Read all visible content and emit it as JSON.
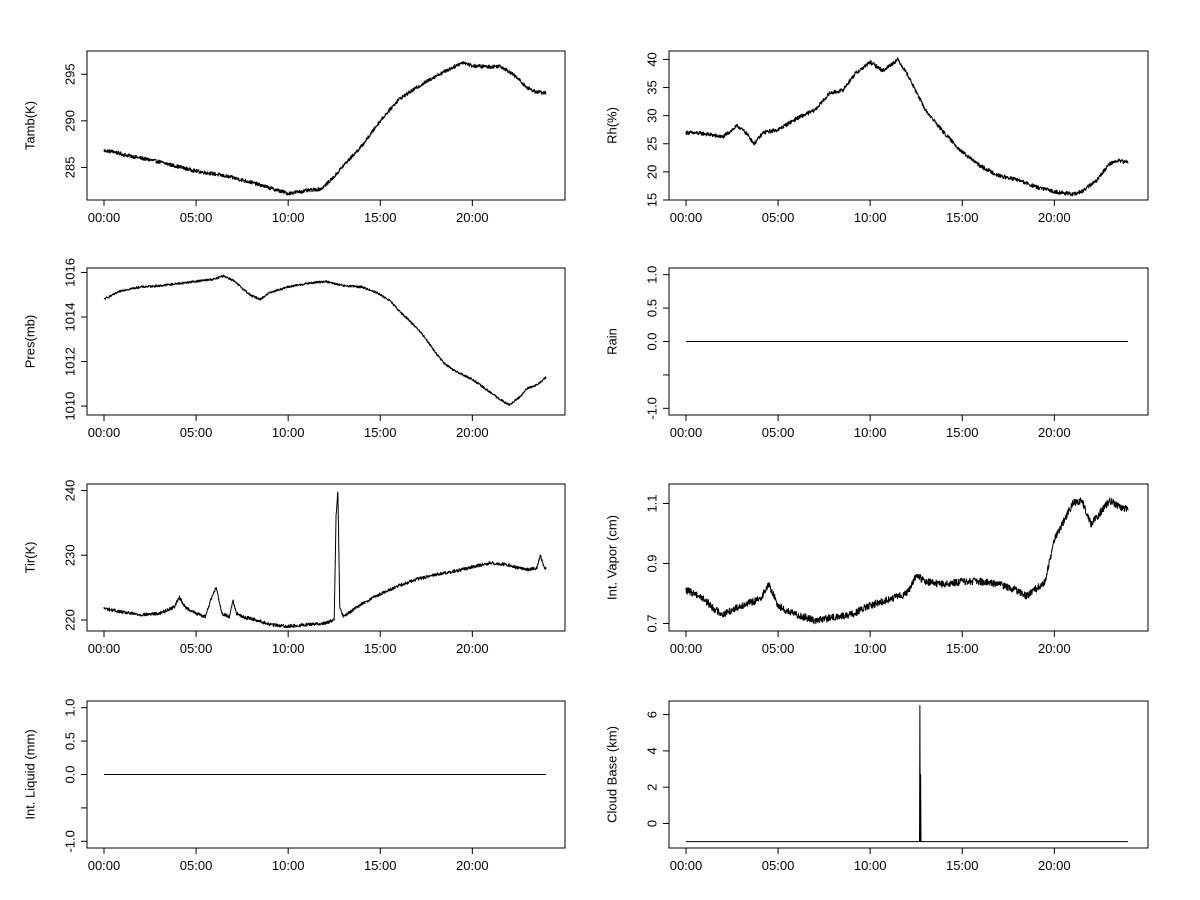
{
  "chart_data": [
    {
      "type": "line",
      "ylabel": "Tamb(K)",
      "xlabel": "",
      "xlim": [
        0,
        24
      ],
      "ylim": [
        281.5,
        297.5
      ],
      "x_ticks": [
        0,
        5,
        10,
        15,
        20
      ],
      "x_tick_labels": [
        "00:00",
        "05:00",
        "10:00",
        "15:00",
        "20:00"
      ],
      "y_ticks": [
        285,
        290,
        295
      ],
      "y_tick_labels": [
        "285",
        "290",
        "295"
      ],
      "noise": 0.2,
      "series": [
        {
          "x": [
            0,
            0.5,
            1,
            2,
            3,
            4,
            5,
            6,
            7,
            8,
            9,
            10,
            11,
            11.8,
            12.5,
            13,
            14,
            15,
            16,
            17,
            18,
            19,
            19.5,
            20,
            21,
            21.5,
            22,
            22.5,
            23,
            23.5,
            24
          ],
          "y": [
            286.8,
            286.7,
            286.4,
            286.0,
            285.6,
            285.1,
            284.6,
            284.3,
            283.9,
            283.4,
            282.8,
            282.2,
            282.5,
            282.7,
            284.0,
            285.2,
            287.3,
            290.0,
            292.3,
            293.6,
            294.8,
            295.8,
            296.3,
            295.9,
            295.8,
            295.9,
            295.3,
            294.5,
            293.5,
            293.1,
            293.0
          ]
        }
      ]
    },
    {
      "type": "line",
      "ylabel": "Rh(%)",
      "xlabel": "",
      "xlim": [
        0,
        24
      ],
      "ylim": [
        15,
        41.5
      ],
      "x_ticks": [
        0,
        5,
        10,
        15,
        20
      ],
      "x_tick_labels": [
        "00:00",
        "05:00",
        "10:00",
        "15:00",
        "20:00"
      ],
      "y_ticks": [
        15,
        20,
        25,
        30,
        35,
        40
      ],
      "y_tick_labels": [
        "15",
        "20",
        "25",
        "30",
        "35",
        "40"
      ],
      "noise": 0.35,
      "series": [
        {
          "x": [
            0,
            1,
            2,
            2.8,
            3.3,
            3.7,
            4.2,
            5,
            6,
            7,
            7.8,
            8.5,
            9.2,
            10,
            10.7,
            11.5,
            12,
            13,
            14,
            15,
            16,
            17,
            18,
            19,
            20,
            21,
            21.5,
            22.3,
            23,
            23.5,
            24
          ],
          "y": [
            27,
            26.8,
            26.2,
            28.2,
            26.8,
            25.0,
            27.0,
            27.5,
            29.5,
            31.0,
            34.0,
            34.5,
            37.5,
            39.5,
            38.0,
            40.0,
            37.5,
            31.0,
            27.0,
            23.5,
            21.0,
            19.3,
            18.6,
            17.3,
            16.5,
            16.0,
            16.5,
            18.5,
            21.5,
            22.0,
            21.7
          ]
        }
      ]
    },
    {
      "type": "line",
      "ylabel": "Pres(mb)",
      "xlabel": "",
      "xlim": [
        0,
        24
      ],
      "ylim": [
        1009.6,
        1016.2
      ],
      "x_ticks": [
        0,
        5,
        10,
        15,
        20
      ],
      "x_tick_labels": [
        "00:00",
        "05:00",
        "10:00",
        "15:00",
        "20:00"
      ],
      "y_ticks": [
        1010,
        1012,
        1014,
        1016
      ],
      "y_tick_labels": [
        "1010",
        "1012",
        "1014",
        "1016"
      ],
      "noise": 0.05,
      "series": [
        {
          "x": [
            0,
            0.5,
            1,
            2,
            3,
            4,
            5,
            6,
            6.5,
            7,
            7.5,
            8,
            8.5,
            9,
            10,
            11,
            12,
            13,
            14,
            14.8,
            15.5,
            16,
            17,
            17.5,
            18,
            18.5,
            19,
            20,
            21,
            21.5,
            22,
            22.5,
            23,
            23.5,
            24
          ],
          "y": [
            1014.8,
            1015.0,
            1015.2,
            1015.35,
            1015.4,
            1015.5,
            1015.6,
            1015.7,
            1015.85,
            1015.65,
            1015.3,
            1014.95,
            1014.8,
            1015.1,
            1015.35,
            1015.5,
            1015.6,
            1015.4,
            1015.35,
            1015.1,
            1014.75,
            1014.3,
            1013.5,
            1013.0,
            1012.4,
            1011.9,
            1011.6,
            1011.2,
            1010.6,
            1010.3,
            1010.05,
            1010.35,
            1010.8,
            1010.95,
            1011.3
          ]
        }
      ]
    },
    {
      "type": "line",
      "ylabel": "Rain",
      "xlabel": "",
      "xlim": [
        0,
        24
      ],
      "ylim": [
        -1.1,
        1.1
      ],
      "x_ticks": [
        0,
        5,
        10,
        15,
        20
      ],
      "x_tick_labels": [
        "00:00",
        "05:00",
        "10:00",
        "15:00",
        "20:00"
      ],
      "y_ticks": [
        -1.0,
        -0.5,
        0.0,
        0.5,
        1.0
      ],
      "y_tick_labels": [
        "-1.0",
        "",
        "0.0",
        "0.5",
        "1.0"
      ],
      "noise": 0,
      "series": [
        {
          "x": [
            0,
            24
          ],
          "y": [
            0,
            0
          ]
        }
      ]
    },
    {
      "type": "line",
      "ylabel": "Tir(K)",
      "xlabel": "",
      "xlim": [
        0,
        24
      ],
      "ylim": [
        218.3,
        241
      ],
      "x_ticks": [
        0,
        5,
        10,
        15,
        20
      ],
      "x_tick_labels": [
        "00:00",
        "05:00",
        "10:00",
        "15:00",
        "20:00"
      ],
      "y_ticks": [
        220,
        230,
        240
      ],
      "y_tick_labels": [
        "220",
        "230",
        "240"
      ],
      "noise": 0.25,
      "series": [
        {
          "x": [
            0,
            1,
            2,
            3,
            3.8,
            4.1,
            4.4,
            5,
            5.5,
            5.9,
            6.1,
            6.4,
            6.8,
            7.0,
            7.2,
            7.5,
            8,
            8.5,
            9,
            10,
            11,
            12,
            12.5,
            12.6,
            12.7,
            12.8,
            13,
            14,
            15,
            16,
            17,
            18,
            19,
            20,
            21,
            22,
            22.5,
            23,
            23.5,
            23.7,
            23.9,
            24
          ],
          "y": [
            221.8,
            221.2,
            220.8,
            221.0,
            222.0,
            223.5,
            222.0,
            221.0,
            220.5,
            224.0,
            225.0,
            221.0,
            220.5,
            223.0,
            221.0,
            220.5,
            220.2,
            219.8,
            219.3,
            219.0,
            219.3,
            219.5,
            220.0,
            236.0,
            240.0,
            222.0,
            220.5,
            222.5,
            224.0,
            225.3,
            226.3,
            227.0,
            227.5,
            228.2,
            228.8,
            228.5,
            228.0,
            227.8,
            228.0,
            230.0,
            228.0,
            228.0
          ]
        }
      ]
    },
    {
      "type": "line",
      "ylabel": "Int. Vapor (cm)",
      "xlabel": "",
      "xlim": [
        0,
        24
      ],
      "ylim": [
        0.675,
        1.165
      ],
      "x_ticks": [
        0,
        5,
        10,
        15,
        20
      ],
      "x_tick_labels": [
        "00:00",
        "05:00",
        "10:00",
        "15:00",
        "20:00"
      ],
      "y_ticks": [
        0.7,
        0.9,
        1.1
      ],
      "y_tick_labels": [
        "0.7",
        "0.9",
        "1.1"
      ],
      "noise": 0.012,
      "series": [
        {
          "x": [
            0,
            0.5,
            1,
            1.5,
            2,
            3,
            4,
            4.5,
            5,
            5.5,
            6,
            7,
            8,
            9,
            10,
            11,
            12,
            12.5,
            13,
            14,
            15,
            16,
            17,
            18,
            18.5,
            19.5,
            20,
            21,
            21.5,
            22,
            22.5,
            23,
            23.5,
            24
          ],
          "y": [
            0.81,
            0.8,
            0.78,
            0.75,
            0.73,
            0.76,
            0.78,
            0.83,
            0.76,
            0.74,
            0.73,
            0.71,
            0.72,
            0.73,
            0.76,
            0.78,
            0.8,
            0.86,
            0.84,
            0.83,
            0.84,
            0.84,
            0.83,
            0.81,
            0.79,
            0.84,
            0.98,
            1.1,
            1.11,
            1.03,
            1.07,
            1.11,
            1.09,
            1.08
          ]
        }
      ]
    },
    {
      "type": "line",
      "ylabel": "Int. Liquid (mm)",
      "xlabel": "",
      "xlim": [
        0,
        24
      ],
      "ylim": [
        -1.1,
        1.1
      ],
      "x_ticks": [
        0,
        5,
        10,
        15,
        20
      ],
      "x_tick_labels": [
        "00:00",
        "05:00",
        "10:00",
        "15:00",
        "20:00"
      ],
      "y_ticks": [
        -1.0,
        -0.5,
        0.0,
        0.5,
        1.0
      ],
      "y_tick_labels": [
        "-1.0",
        "",
        "0.0",
        "0.5",
        "1.0"
      ],
      "noise": 0,
      "series": [
        {
          "x": [
            0,
            24
          ],
          "y": [
            0,
            0
          ]
        }
      ]
    },
    {
      "type": "line",
      "ylabel": "Cloud Base (km)",
      "xlabel": "",
      "xlim": [
        0,
        24
      ],
      "ylim": [
        -1.35,
        6.75
      ],
      "x_ticks": [
        0,
        5,
        10,
        15,
        20
      ],
      "x_tick_labels": [
        "00:00",
        "05:00",
        "10:00",
        "15:00",
        "20:00"
      ],
      "y_ticks": [
        0,
        2,
        4,
        6
      ],
      "y_tick_labels": [
        "0",
        "2",
        "4",
        "6"
      ],
      "noise": 0,
      "series": [
        {
          "x": [
            0,
            12.68,
            12.7,
            12.72,
            12.74,
            12.76,
            12.78,
            24
          ],
          "y": [
            -1,
            -1,
            6.5,
            -1,
            2.7,
            -1,
            -1,
            -1
          ]
        }
      ]
    }
  ]
}
